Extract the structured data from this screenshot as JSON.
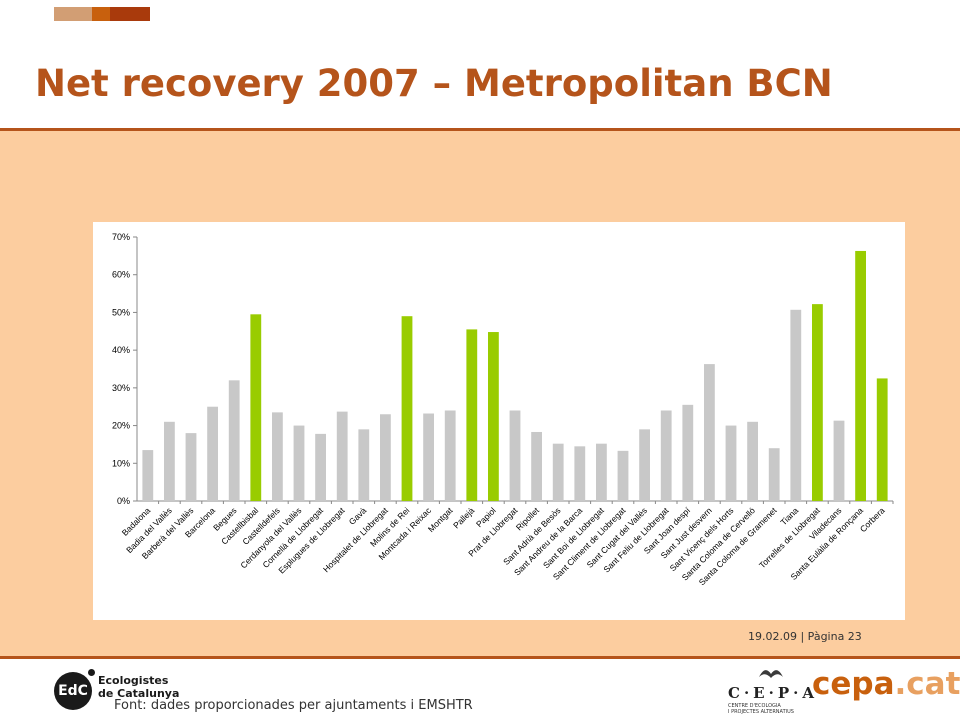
{
  "slide": {
    "title": "Net recovery 2007 – Metropolitan BCN",
    "page_info": "19.02.09 | Pàgina 23",
    "source_note": "Font: dades proporcionades per ajuntaments i EMSHTR"
  },
  "logos": {
    "edc_mark": "EdC",
    "edc_name_line1": "Ecologistes",
    "edc_name_line2": "de Catalunya",
    "cepa_acronym": "C·E·P·A",
    "cepa_sub_line1": "CENTRE D'ECOLOGIA",
    "cepa_sub_line2": "I PROJECTES ALTERNATIUS",
    "cepa_web_main": "cepa",
    "cepa_web_tld": ".cat"
  },
  "colors": {
    "accent": "#b5541b",
    "panel": "#fccd9f",
    "bar_default": "#c8c8c8",
    "bar_highlight": "#99cc00",
    "cepa_orange": "#c8600d"
  },
  "chart_data": {
    "type": "bar",
    "title": "",
    "xlabel": "",
    "ylabel": "",
    "ylim": [
      0,
      0.7
    ],
    "yticks": [
      0,
      0.1,
      0.2,
      0.3,
      0.4,
      0.5,
      0.6,
      0.7
    ],
    "ytick_labels": [
      "0%",
      "10%",
      "20%",
      "30%",
      "40%",
      "50%",
      "60%",
      "70%"
    ],
    "grid": false,
    "legend": "none",
    "categories": [
      "Badalona",
      "Badia del Vallès",
      "Barberà del Vallès",
      "Barcelona",
      "Begues",
      "Castellbisbal",
      "Castelldefels",
      "Cerdanyola del Vallès",
      "Cornellà de Llobregat",
      "Esplugues de Llobregat",
      "Gavà",
      "Hospitalet de Llobregat",
      "Molins de Rei",
      "Montcada i Reixac",
      "Montgat",
      "Pallejà",
      "Papiol",
      "Prat de Llobregat",
      "Ripollet",
      "Sant Adrià de Besòs",
      "Sant Andreu de la Barca",
      "Sant Boi de Llobregat",
      "Sant Climent de Llobregat",
      "Sant Cugat del Vallès",
      "Sant Feliu de Llobregat",
      "Sant Joan despí",
      "Sant Just desvern",
      "Sant Vicenç dels Horts",
      "Santa Coloma de Cervelló",
      "Santa Coloma de Gramenet",
      "Tiana",
      "Torrelles de Llobregat",
      "Viladecans",
      "Santa Eulàlia de Ronçana",
      "Corbera"
    ],
    "values": [
      0.135,
      0.21,
      0.18,
      0.25,
      0.32,
      0.495,
      0.235,
      0.2,
      0.178,
      0.237,
      0.19,
      0.23,
      0.49,
      0.232,
      0.24,
      0.455,
      0.448,
      0.24,
      0.183,
      0.152,
      0.145,
      0.152,
      0.133,
      0.19,
      0.24,
      0.255,
      0.363,
      0.2,
      0.21,
      0.14,
      0.507,
      0.522,
      0.213,
      0.663,
      0.325
    ],
    "highlighted": [
      false,
      false,
      false,
      false,
      false,
      true,
      false,
      false,
      false,
      false,
      false,
      false,
      true,
      false,
      false,
      true,
      true,
      false,
      false,
      false,
      false,
      false,
      false,
      false,
      false,
      false,
      false,
      false,
      false,
      false,
      false,
      true,
      false,
      true,
      true
    ]
  }
}
